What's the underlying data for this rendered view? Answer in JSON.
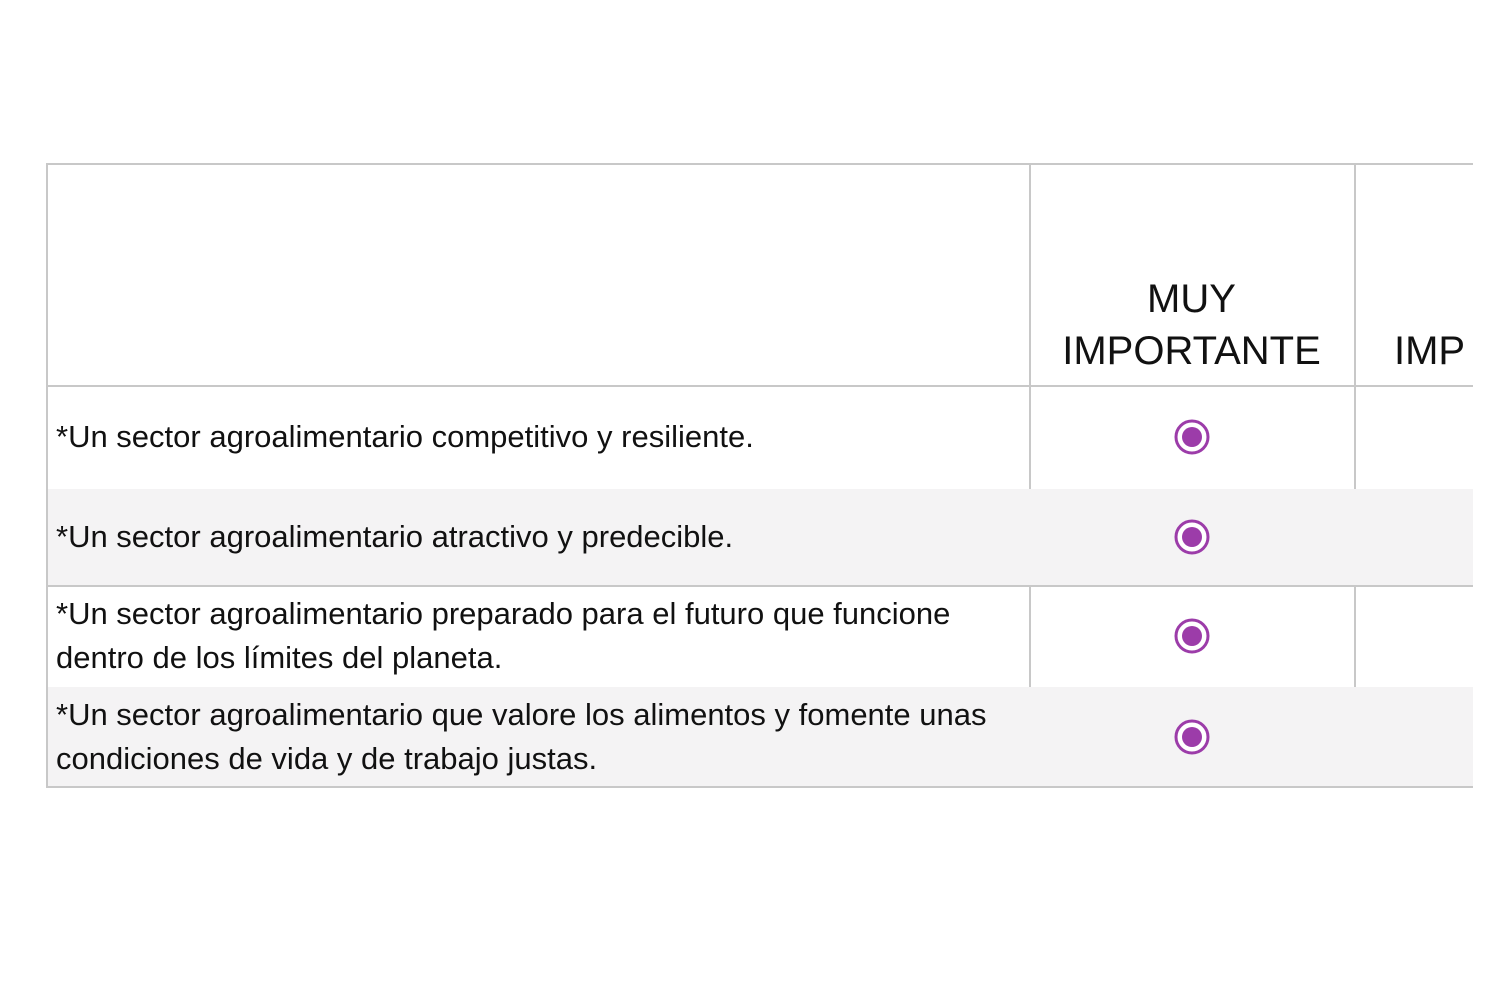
{
  "table": {
    "columns": [
      "MUY IMPORTANTE",
      "IMP"
    ],
    "rows": [
      "*Un sector agroalimentario competitivo y resiliente.",
      "*Un sector agroalimentario atractivo y predecible.",
      "*Un sector agroalimentario preparado para el futuro que funcione dentro de los límites del planeta.",
      "*Un sector agroalimentario que valore los alimentos y fomente unas condiciones de vida y de trabajo justas."
    ]
  }
}
